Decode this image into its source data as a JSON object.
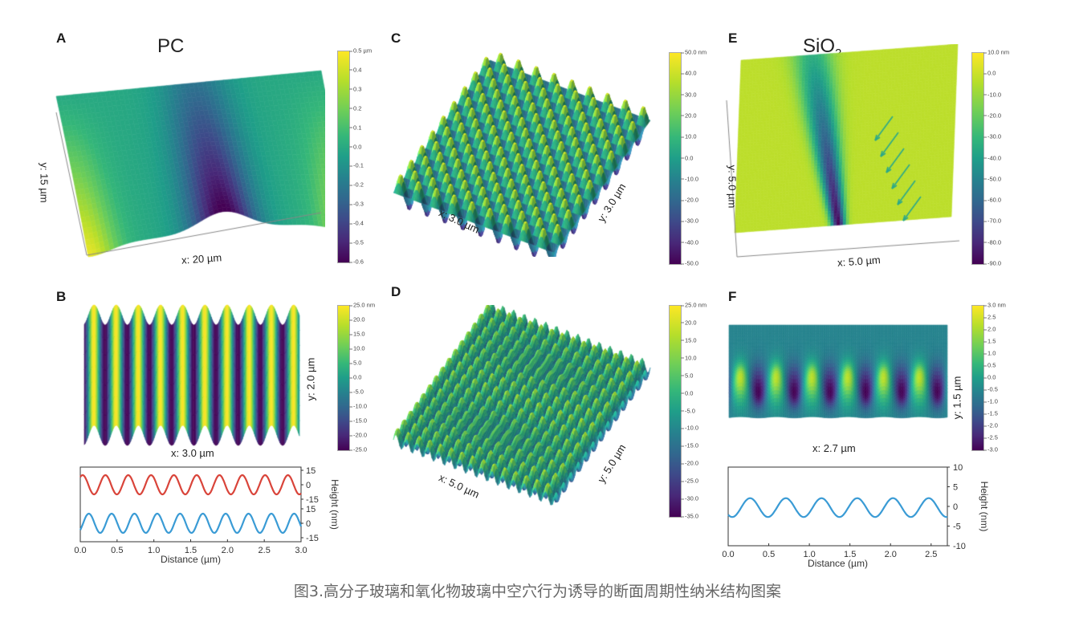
{
  "caption": "图3.高分子玻璃和氧化物玻璃中空穴行为诱导的断面周期性纳米结构图案",
  "panels": {
    "A": {
      "letter": "A",
      "title": "PC",
      "x_label": "x: 20 µm",
      "y_label": "y: 15 µm",
      "colorbar": {
        "ticks": [
          "0.5 µm",
          "0.4",
          "0.3",
          "0.2",
          "0.1",
          "0.0",
          "-0.1",
          "-0.2",
          "-0.3",
          "-0.4",
          "-0.5",
          "-0.6"
        ]
      }
    },
    "B": {
      "letter": "B",
      "x_label": "x: 3.0 µm",
      "y_label": "y: 2.0 µm",
      "colorbar": {
        "ticks": [
          "25.0 nm",
          "20.0",
          "15.0",
          "10.0",
          "5.0",
          "0.0",
          "-5.0",
          "-10.0",
          "-15.0",
          "-20.0",
          "-25.0"
        ]
      }
    },
    "C": {
      "letter": "C",
      "x_label": "x: 3.0 µm",
      "y_label": "y: 3.0 µm",
      "colorbar": {
        "ticks": [
          "50.0 nm",
          "40.0",
          "30.0",
          "20.0",
          "10.0",
          "0.0",
          "-10.0",
          "-20.0",
          "-30.0",
          "-40.0",
          "-50.0"
        ]
      }
    },
    "D": {
      "letter": "D",
      "x_label": "x: 5.0 µm",
      "y_label": "y: 5.0 µm",
      "colorbar": {
        "ticks": [
          "25.0 nm",
          "20.0",
          "15.0",
          "10.0",
          "5.0",
          "0.0",
          "-5.0",
          "-10.0",
          "-15.0",
          "-20.0",
          "-25.0",
          "-30.0",
          "-35.0"
        ]
      }
    },
    "E": {
      "letter": "E",
      "title_main": "SiO",
      "title_sub": "2",
      "x_label": "x: 5.0 µm",
      "y_label": "y: 5.0 µm",
      "colorbar": {
        "ticks": [
          "10.0 nm",
          "0.0",
          "-10.0",
          "-20.0",
          "-30.0",
          "-40.0",
          "-50.0",
          "-60.0",
          "-70.0",
          "-80.0",
          "-90.0"
        ]
      }
    },
    "F": {
      "letter": "F",
      "x_label": "x: 2.7 µm",
      "y_label": "y: 1.5 µm",
      "colorbar": {
        "ticks": [
          "3.0 nm",
          "2.5",
          "2.0",
          "1.5",
          "1.0",
          "0.5",
          "0.0",
          "-0.5",
          "-1.0",
          "-1.5",
          "-2.0",
          "-2.5",
          "-3.0"
        ]
      }
    }
  },
  "chart_data": [
    {
      "type": "line",
      "panel": "B-profile",
      "title": "",
      "xlabel": "Distance (µm)",
      "ylabel": "Height (nm)",
      "xlim": [
        0.0,
        3.0
      ],
      "x_ticks": [
        "0.0",
        "0.5",
        "1.0",
        "1.5",
        "2.0",
        "2.5",
        "3.0"
      ],
      "y_ticks_upper": [
        "15",
        "0",
        "-15"
      ],
      "y_ticks_lower": [
        "15",
        "0",
        "-15"
      ],
      "grid": false,
      "series": [
        {
          "name": "profile-red",
          "color": "#d9443a",
          "amplitude_nm": 10,
          "period_um": 0.31,
          "phase_um": 0.0,
          "offset": "upper",
          "x_start_value_nm": 8
        },
        {
          "name": "profile-blue",
          "color": "#3a9bd5",
          "amplitude_nm": 10,
          "period_um": 0.31,
          "phase_um": 0.0,
          "offset": "lower",
          "x_start_value_nm": -7
        }
      ]
    },
    {
      "type": "line",
      "panel": "F-profile",
      "title": "",
      "xlabel": "Distance (µm)",
      "ylabel": "Height (nm)",
      "xlim": [
        0.0,
        2.7
      ],
      "ylim": [
        -10,
        10
      ],
      "x_ticks": [
        "0.0",
        "0.5",
        "1.0",
        "1.5",
        "2.0",
        "2.5"
      ],
      "y_ticks": [
        "10",
        "5",
        "0",
        "-5",
        "-10"
      ],
      "grid": false,
      "series": [
        {
          "name": "profile-blue",
          "color": "#3a9bd5",
          "amplitude_nm": 2.4,
          "period_um": 0.44,
          "peaks_um": [
            0.33,
            0.75,
            1.2,
            1.63,
            2.07,
            2.52
          ],
          "valleys_um": [
            0.05,
            0.5,
            0.92,
            1.37,
            1.82,
            2.27
          ]
        }
      ]
    }
  ]
}
